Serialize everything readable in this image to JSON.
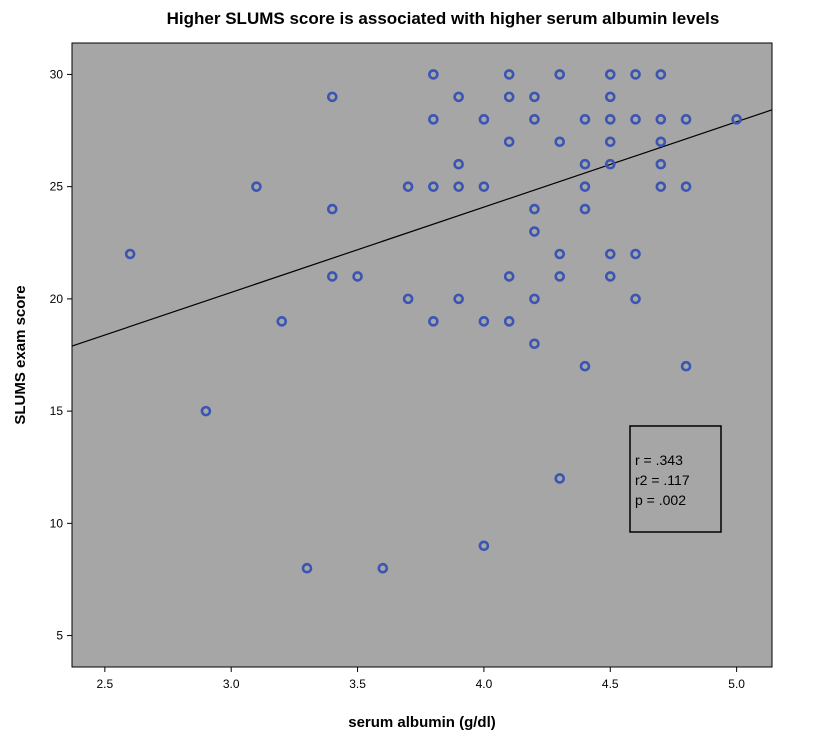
{
  "chart_data": {
    "type": "scatter",
    "title": "Higher SLUMS score is associated with higher serum albumin levels",
    "xlabel": "serum albumin (g/dl)",
    "ylabel": "SLUMS exam score",
    "xlim": [
      2.37,
      5.14
    ],
    "ylim": [
      3.6,
      31.4
    ],
    "xticks": [
      "2.5",
      "3.0",
      "3.5",
      "4.0",
      "4.5",
      "5.0"
    ],
    "yticks": [
      "5",
      "10",
      "15",
      "20",
      "25",
      "30"
    ],
    "grid": false,
    "point_color": "#3a55b4",
    "background_color": "#a6a6a6",
    "fit_line": {
      "slope": 3.8,
      "intercept": 8.89
    },
    "annotation": {
      "lines": [
        "r = .343",
        "r2 = .117",
        "p = .002"
      ],
      "placement": "lower-right"
    },
    "points": [
      {
        "x": 2.6,
        "y": 22
      },
      {
        "x": 2.9,
        "y": 15
      },
      {
        "x": 3.1,
        "y": 25
      },
      {
        "x": 3.2,
        "y": 19
      },
      {
        "x": 3.3,
        "y": 8
      },
      {
        "x": 3.4,
        "y": 29
      },
      {
        "x": 3.4,
        "y": 24
      },
      {
        "x": 3.4,
        "y": 21
      },
      {
        "x": 3.5,
        "y": 21
      },
      {
        "x": 3.6,
        "y": 8
      },
      {
        "x": 3.7,
        "y": 25
      },
      {
        "x": 3.7,
        "y": 20
      },
      {
        "x": 3.8,
        "y": 30
      },
      {
        "x": 3.8,
        "y": 28
      },
      {
        "x": 3.8,
        "y": 25
      },
      {
        "x": 3.8,
        "y": 19
      },
      {
        "x": 3.9,
        "y": 29
      },
      {
        "x": 3.9,
        "y": 26
      },
      {
        "x": 3.9,
        "y": 25
      },
      {
        "x": 3.9,
        "y": 20
      },
      {
        "x": 4.0,
        "y": 28
      },
      {
        "x": 4.0,
        "y": 25
      },
      {
        "x": 4.0,
        "y": 19
      },
      {
        "x": 4.0,
        "y": 9
      },
      {
        "x": 4.1,
        "y": 30
      },
      {
        "x": 4.1,
        "y": 29
      },
      {
        "x": 4.1,
        "y": 27
      },
      {
        "x": 4.1,
        "y": 21
      },
      {
        "x": 4.1,
        "y": 19
      },
      {
        "x": 4.2,
        "y": 29
      },
      {
        "x": 4.2,
        "y": 28
      },
      {
        "x": 4.2,
        "y": 24
      },
      {
        "x": 4.2,
        "y": 23
      },
      {
        "x": 4.2,
        "y": 20
      },
      {
        "x": 4.2,
        "y": 18
      },
      {
        "x": 4.3,
        "y": 30
      },
      {
        "x": 4.3,
        "y": 27
      },
      {
        "x": 4.3,
        "y": 22
      },
      {
        "x": 4.3,
        "y": 21
      },
      {
        "x": 4.3,
        "y": 12
      },
      {
        "x": 4.4,
        "y": 28
      },
      {
        "x": 4.4,
        "y": 26
      },
      {
        "x": 4.4,
        "y": 25
      },
      {
        "x": 4.4,
        "y": 24
      },
      {
        "x": 4.4,
        "y": 17
      },
      {
        "x": 4.5,
        "y": 30
      },
      {
        "x": 4.5,
        "y": 29
      },
      {
        "x": 4.5,
        "y": 28
      },
      {
        "x": 4.5,
        "y": 27
      },
      {
        "x": 4.5,
        "y": 26
      },
      {
        "x": 4.5,
        "y": 22
      },
      {
        "x": 4.5,
        "y": 21
      },
      {
        "x": 4.6,
        "y": 30
      },
      {
        "x": 4.6,
        "y": 28
      },
      {
        "x": 4.6,
        "y": 22
      },
      {
        "x": 4.6,
        "y": 20
      },
      {
        "x": 4.7,
        "y": 30
      },
      {
        "x": 4.7,
        "y": 28
      },
      {
        "x": 4.7,
        "y": 27
      },
      {
        "x": 4.7,
        "y": 26
      },
      {
        "x": 4.7,
        "y": 25
      },
      {
        "x": 4.8,
        "y": 28
      },
      {
        "x": 4.8,
        "y": 25
      },
      {
        "x": 4.8,
        "y": 17
      },
      {
        "x": 5.0,
        "y": 28
      }
    ]
  }
}
